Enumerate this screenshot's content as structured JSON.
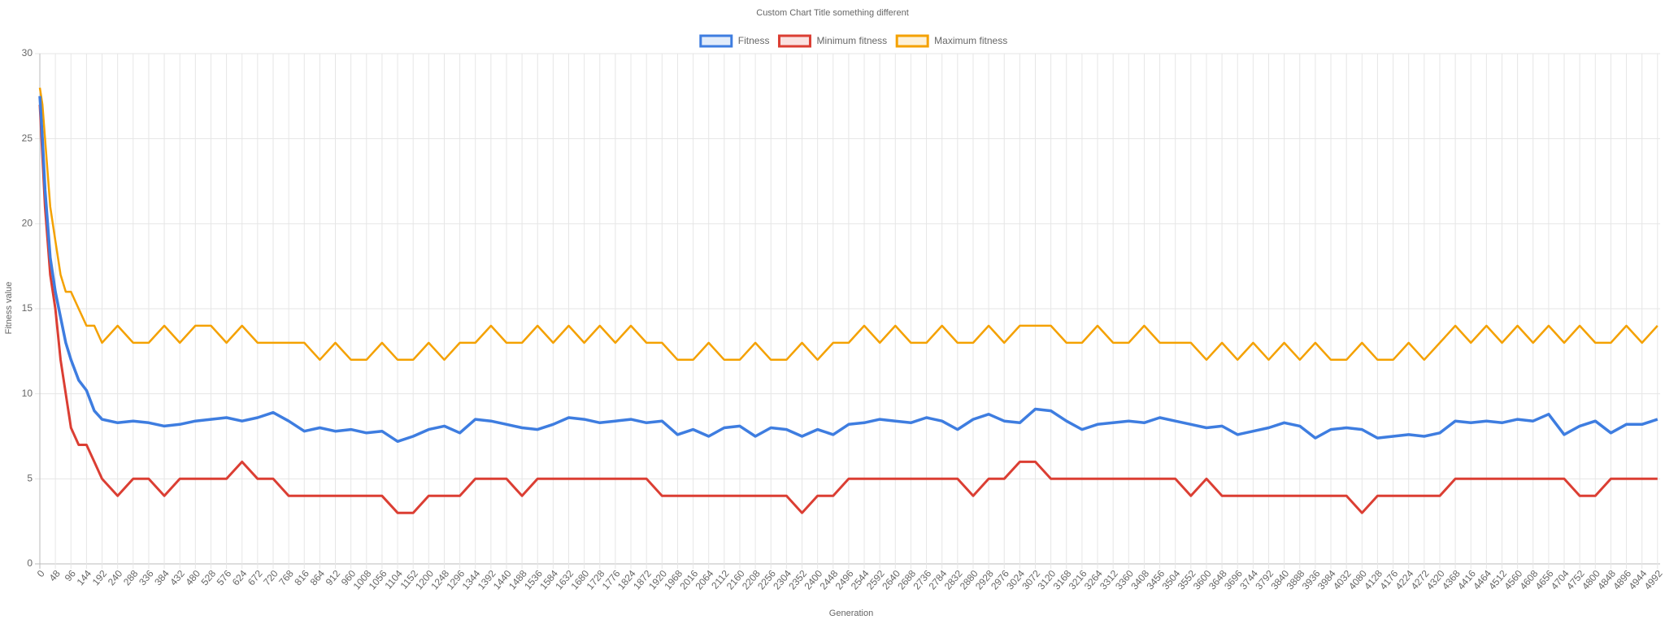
{
  "chart_data": {
    "type": "line",
    "title": "Custom Chart Title something different",
    "xlabel": "Generation",
    "ylabel": "Fitness value",
    "legend": "top",
    "grid": true,
    "xlim": [
      0,
      5000
    ],
    "ylim": [
      0,
      30
    ],
    "yticks": [
      0,
      5,
      10,
      15,
      20,
      25,
      30
    ],
    "xticks": [
      0,
      48,
      96,
      144,
      192,
      240,
      288,
      336,
      384,
      432,
      480,
      528,
      576,
      624,
      672,
      720,
      768,
      816,
      864,
      912,
      960,
      1008,
      1056,
      1104,
      1152,
      1200,
      1248,
      1296,
      1344,
      1392,
      1440,
      1488,
      1536,
      1584,
      1632,
      1680,
      1728,
      1776,
      1824,
      1872,
      1920,
      1968,
      2016,
      2064,
      2112,
      2160,
      2208,
      2256,
      2304,
      2352,
      2400,
      2448,
      2496,
      2544,
      2592,
      2640,
      2688,
      2736,
      2784,
      2832,
      2880,
      2928,
      2976,
      3024,
      3072,
      3120,
      3168,
      3216,
      3264,
      3312,
      3360,
      3408,
      3456,
      3504,
      3552,
      3600,
      3648,
      3696,
      3744,
      3792,
      3840,
      3888,
      3936,
      3984,
      4032,
      4080,
      4128,
      4176,
      4224,
      4272,
      4320,
      4368,
      4416,
      4464,
      4512,
      4560,
      4608,
      4656,
      4704,
      4752,
      4800,
      4848,
      4896,
      4944,
      4992
    ],
    "x": [
      0,
      8,
      16,
      24,
      32,
      48,
      64,
      80,
      96,
      120,
      144,
      168,
      192,
      240,
      288,
      336,
      384,
      432,
      480,
      528,
      576,
      624,
      672,
      720,
      768,
      816,
      864,
      912,
      960,
      1008,
      1056,
      1104,
      1152,
      1200,
      1248,
      1296,
      1344,
      1392,
      1440,
      1488,
      1536,
      1584,
      1632,
      1680,
      1728,
      1776,
      1824,
      1872,
      1920,
      1968,
      2016,
      2064,
      2112,
      2160,
      2208,
      2256,
      2304,
      2352,
      2400,
      2448,
      2496,
      2544,
      2592,
      2640,
      2688,
      2736,
      2784,
      2832,
      2880,
      2928,
      2976,
      3024,
      3072,
      3120,
      3168,
      3216,
      3264,
      3312,
      3360,
      3408,
      3456,
      3504,
      3552,
      3600,
      3648,
      3696,
      3744,
      3792,
      3840,
      3888,
      3936,
      3984,
      4032,
      4080,
      4128,
      4176,
      4224,
      4272,
      4320,
      4368,
      4416,
      4464,
      4512,
      4560,
      4608,
      4656,
      4704,
      4752,
      4800,
      4848,
      4896,
      4944,
      4992
    ],
    "series": [
      {
        "name": "Fitness",
        "color": "#3e7de0",
        "values": [
          27.5,
          25,
          22,
          20,
          18,
          16,
          14.5,
          13,
          12,
          10.8,
          10.2,
          9,
          8.5,
          8.3,
          8.4,
          8.3,
          8.1,
          8.2,
          8.4,
          8.5,
          8.6,
          8.4,
          8.6,
          8.9,
          8.4,
          7.8,
          8.0,
          7.8,
          7.9,
          7.7,
          7.8,
          7.2,
          7.5,
          7.9,
          8.1,
          7.7,
          8.5,
          8.4,
          8.2,
          8.0,
          7.9,
          8.2,
          8.6,
          8.5,
          8.3,
          8.4,
          8.5,
          8.3,
          8.4,
          7.6,
          7.9,
          7.5,
          8.0,
          8.1,
          7.5,
          8.0,
          7.9,
          7.5,
          7.9,
          7.6,
          8.2,
          8.3,
          8.5,
          8.4,
          8.3,
          8.6,
          8.4,
          7.9,
          8.5,
          8.8,
          8.4,
          8.3,
          9.1,
          9.0,
          8.4,
          7.9,
          8.2,
          8.3,
          8.4,
          8.3,
          8.6,
          8.4,
          8.2,
          8.0,
          8.1,
          7.6,
          7.8,
          8.0,
          8.3,
          8.1,
          7.4,
          7.9,
          8.0,
          7.9,
          7.4,
          7.5,
          7.6,
          7.5,
          7.7,
          8.4,
          8.3,
          8.4,
          8.3,
          8.5,
          8.4,
          8.8,
          7.6,
          8.1,
          8.4,
          7.7,
          8.2,
          8.2,
          8.5
        ]
      },
      {
        "name": "Minimum fitness",
        "color": "#db3e33",
        "values": [
          27,
          24,
          21,
          19,
          17,
          15,
          12,
          10,
          8,
          7,
          7,
          6,
          5,
          4,
          5,
          5,
          4,
          5,
          5,
          5,
          5,
          6,
          5,
          5,
          4,
          4,
          4,
          4,
          4,
          4,
          4,
          3,
          3,
          4,
          4,
          4,
          5,
          5,
          5,
          4,
          5,
          5,
          5,
          5,
          5,
          5,
          5,
          5,
          4,
          4,
          4,
          4,
          4,
          4,
          4,
          4,
          4,
          3,
          4,
          4,
          5,
          5,
          5,
          5,
          5,
          5,
          5,
          5,
          4,
          5,
          5,
          6,
          6,
          5,
          5,
          5,
          5,
          5,
          5,
          5,
          5,
          5,
          4,
          5,
          4,
          4,
          4,
          4,
          4,
          4,
          4,
          4,
          4,
          3,
          4,
          4,
          4,
          4,
          4,
          5,
          5,
          5,
          5,
          5,
          5,
          5,
          5,
          4,
          4,
          5,
          5,
          5,
          5
        ]
      },
      {
        "name": "Maximum fitness",
        "color": "#f4a100",
        "values": [
          28,
          27,
          25,
          23,
          21,
          19,
          17,
          16,
          16,
          15,
          14,
          14,
          13,
          14,
          13,
          13,
          14,
          13,
          14,
          14,
          13,
          14,
          13,
          13,
          13,
          13,
          12,
          13,
          12,
          12,
          13,
          12,
          12,
          13,
          12,
          13,
          13,
          14,
          13,
          13,
          14,
          13,
          14,
          13,
          14,
          13,
          14,
          13,
          13,
          12,
          12,
          13,
          12,
          12,
          13,
          12,
          12,
          13,
          12,
          13,
          13,
          14,
          13,
          14,
          13,
          13,
          14,
          13,
          13,
          14,
          13,
          14,
          14,
          14,
          13,
          13,
          14,
          13,
          13,
          14,
          13,
          13,
          13,
          12,
          13,
          12,
          13,
          12,
          13,
          12,
          13,
          12,
          12,
          13,
          12,
          12,
          13,
          12,
          13,
          14,
          13,
          14,
          13,
          14,
          13,
          14,
          13,
          14,
          13,
          13,
          14,
          13,
          14
        ]
      }
    ]
  }
}
